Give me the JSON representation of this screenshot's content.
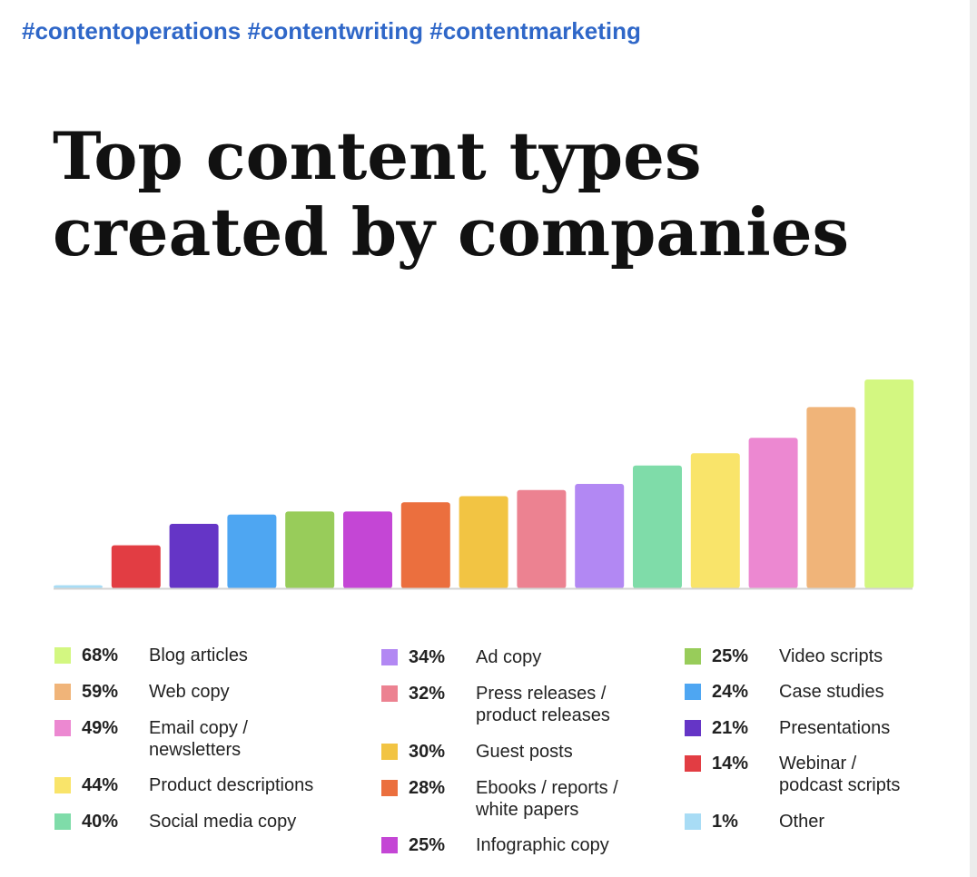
{
  "header": {
    "hashtags": "#contentoperations #contentwriting #contentmarketing"
  },
  "chart_data": {
    "type": "bar",
    "title": [
      "Top content types",
      "created by companies"
    ],
    "categories": [
      "Other",
      "Webinar / podcast scripts",
      "Presentations",
      "Case studies",
      "Video scripts",
      "Infographic copy",
      "Ebooks / reports / white papers",
      "Guest posts",
      "Press releases / product releases",
      "Ad copy",
      "Social media copy",
      "Product descriptions",
      "Email copy / newsletters",
      "Web copy",
      "Blog articles"
    ],
    "values": [
      1,
      14,
      21,
      24,
      25,
      25,
      28,
      30,
      32,
      34,
      40,
      44,
      49,
      59,
      68
    ],
    "colors": [
      "#a8dcf5",
      "#e23d43",
      "#6535c6",
      "#4ea6f2",
      "#98cc5a",
      "#c446d5",
      "#eb6f3e",
      "#f2c443",
      "#ec8291",
      "#b288f3",
      "#7fdca9",
      "#f9e46a",
      "#ec88d1",
      "#f0b479",
      "#d3f781"
    ],
    "ylim": [
      0,
      68
    ],
    "legend": [
      [
        {
          "pct": "68%",
          "label": "Blog articles",
          "color": "#d3f781"
        },
        {
          "pct": "59%",
          "label": "Web copy",
          "color": "#f0b479"
        },
        {
          "pct": "49%",
          "label": "Email copy /\nnewsletters",
          "color": "#ec88d1"
        },
        {
          "pct": "44%",
          "label": "Product descriptions",
          "color": "#f9e46a"
        },
        {
          "pct": "40%",
          "label": "Social media copy",
          "color": "#7fdca9"
        }
      ],
      [
        {
          "pct": "34%",
          "label": "Ad copy",
          "color": "#b288f3"
        },
        {
          "pct": "32%",
          "label": "Press releases /\nproduct releases",
          "color": "#ec8291"
        },
        {
          "pct": "30%",
          "label": "Guest posts",
          "color": "#f2c443"
        },
        {
          "pct": "28%",
          "label": "Ebooks / reports /\nwhite papers",
          "color": "#eb6f3e"
        },
        {
          "pct": "25%",
          "label": "Infographic copy",
          "color": "#c446d5"
        }
      ],
      [
        {
          "pct": "25%",
          "label": "Video scripts",
          "color": "#98cc5a"
        },
        {
          "pct": "24%",
          "label": "Case studies",
          "color": "#4ea6f2"
        },
        {
          "pct": "21%",
          "label": "Presentations",
          "color": "#6535c6"
        },
        {
          "pct": "14%",
          "label": "Webinar /\npodcast scripts",
          "color": "#e23d43"
        },
        {
          "pct": "1%",
          "label": "Other",
          "color": "#a8dcf5"
        }
      ]
    ]
  }
}
